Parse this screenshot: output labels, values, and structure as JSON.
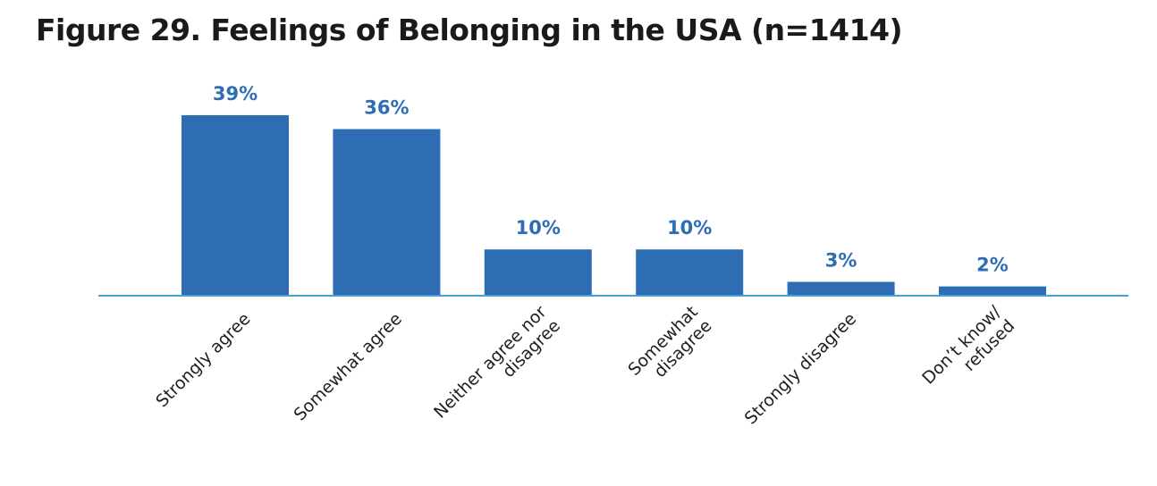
{
  "colors": {
    "bar": "#2e6db4",
    "axis": "#4a9fd4",
    "value_label": "#2e6db4",
    "title": "#1a1a1a"
  },
  "chart_data": {
    "type": "bar",
    "title": "Figure 29. Feelings of Belonging in the USA (n=1414)",
    "xlabel": "",
    "ylabel": "",
    "ylim": [
      0,
      39
    ],
    "grid": false,
    "legend": "none",
    "categories": [
      [
        "Strongly agree"
      ],
      [
        "Somewhat agree"
      ],
      [
        "Neither agree nor",
        "disagree"
      ],
      [
        "Somewhat",
        "disagree"
      ],
      [
        "Strongly disagree"
      ],
      [
        "Don’t know/",
        "refused"
      ]
    ],
    "values": [
      39,
      36,
      10,
      10,
      3,
      2
    ],
    "value_labels": [
      "39%",
      "36%",
      "10%",
      "10%",
      "3%",
      "2%"
    ]
  }
}
